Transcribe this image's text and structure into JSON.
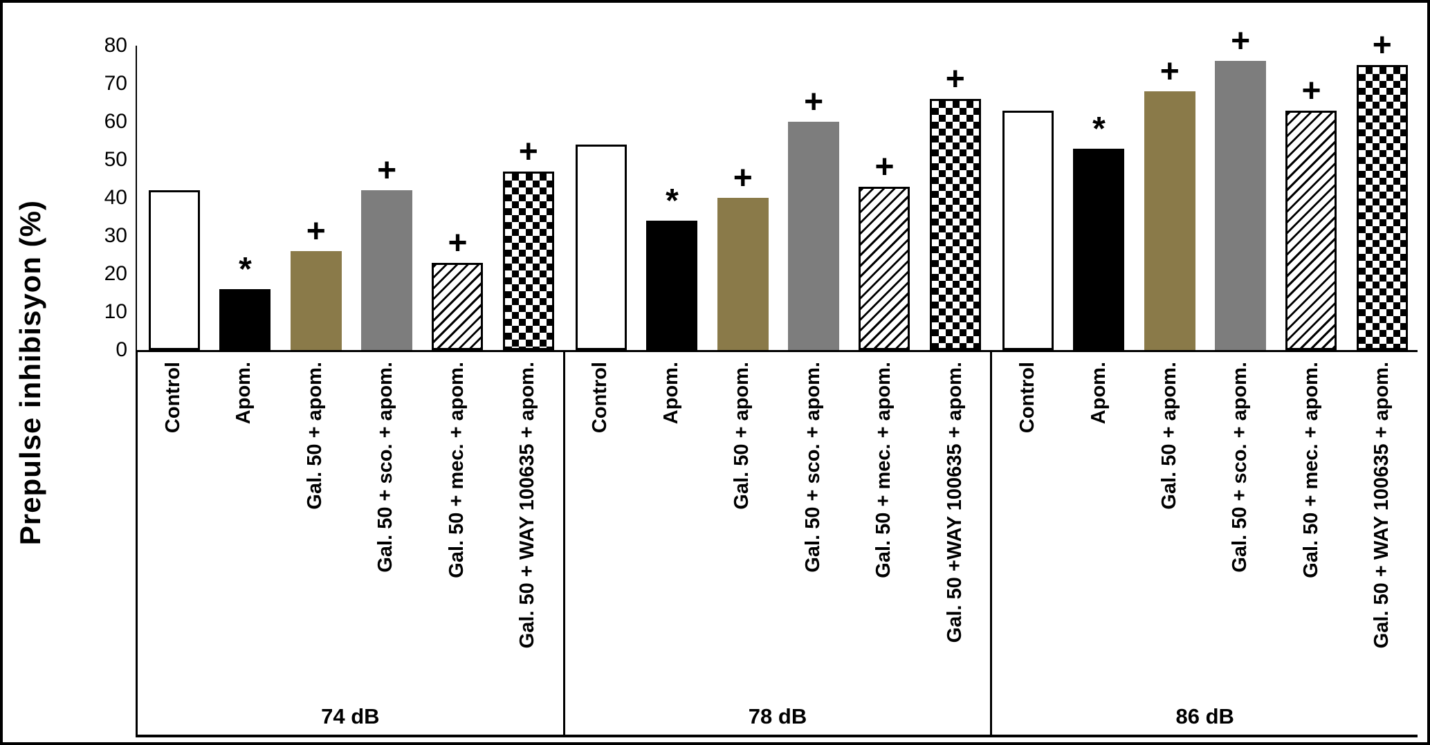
{
  "chart_data": {
    "type": "bar",
    "title": "",
    "xlabel": "",
    "ylabel": "Prepulse inhibisyon (%)",
    "ylim": [
      0,
      80
    ],
    "yticks": [
      80,
      70,
      60,
      50,
      40,
      30,
      20,
      10,
      0
    ],
    "grid": false,
    "legend": "none",
    "groups": [
      {
        "label": "74 dB",
        "categories": [
          "Control",
          "Apom.",
          "Gal. 50 + apom.",
          "Gal. 50 + sco. + apom.",
          "Gal. 50 + mec. + apom.",
          "Gal. 50 + WAY 100635 + apom."
        ],
        "values": [
          42,
          16,
          26,
          42,
          23,
          47
        ],
        "annotations": [
          "",
          "*",
          "+",
          "+",
          "+",
          "+"
        ]
      },
      {
        "label": "78 dB",
        "categories": [
          "Control",
          "Apom.",
          "Gal. 50 + apom.",
          "Gal. 50 + sco. + apom.",
          "Gal. 50 + mec. + apom.",
          "Gal. 50 +WAY 100635 + apom."
        ],
        "values": [
          54,
          34,
          40,
          60,
          43,
          66
        ],
        "annotations": [
          "",
          "*",
          "+",
          "+",
          "+",
          "+"
        ]
      },
      {
        "label": "86 dB",
        "categories": [
          "Control",
          "Apom.",
          "Gal. 50 + apom.",
          "Gal. 50 + sco. + apom.",
          "Gal. 50 + mec. + apom.",
          "Gal. 50 + WAY 100635 + apom."
        ],
        "values": [
          63,
          53,
          68,
          76,
          63,
          75
        ],
        "annotations": [
          "",
          "*",
          "+",
          "+",
          "+",
          "+"
        ]
      }
    ],
    "series_styles": [
      {
        "name": "Control",
        "fill": "white"
      },
      {
        "name": "Apom.",
        "fill": "black"
      },
      {
        "name": "Gal. 50 + apom.",
        "fill": "olive"
      },
      {
        "name": "Gal. 50 + sco. + apom.",
        "fill": "gray"
      },
      {
        "name": "Gal. 50 + mec. + apom.",
        "fill": "diagonal-hatch"
      },
      {
        "name": "Gal. 50 + WAY 100635 + apom.",
        "fill": "checkerboard"
      }
    ],
    "colors": {
      "olive": "#8a7a49",
      "gray": "#7d7d7d",
      "bar_border": "#000000",
      "frame_border": "#000000",
      "background": "#ffffff"
    }
  }
}
